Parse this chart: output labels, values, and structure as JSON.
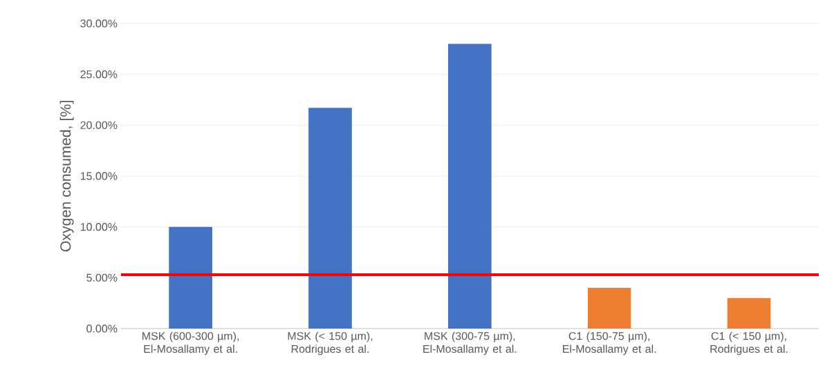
{
  "chart_data": {
    "type": "bar",
    "ylabel": "Oxygen consumed, [%]",
    "categories": [
      "MSK (600-300 µm), El-Mosallamy et al.",
      "MSK (< 150 µm), Rodrigues et al.",
      "MSK (300-75 µm), El-Mosallamy et al.",
      "C1 (150-75 µm), El-Mosallamy et al.",
      "C1 (< 150 µm), Rodrigues et al."
    ],
    "values": [
      10.0,
      21.7,
      28.0,
      4.0,
      3.0
    ],
    "colors": [
      "#4472c4",
      "#4472c4",
      "#4472c4",
      "#ed7d31",
      "#ed7d31"
    ],
    "ylim": [
      0,
      30
    ],
    "yticks": [
      {
        "value": 0,
        "label": "0.00%"
      },
      {
        "value": 5,
        "label": "5.00%"
      },
      {
        "value": 10,
        "label": "10.00%"
      },
      {
        "value": 15,
        "label": "15.00%"
      },
      {
        "value": 20,
        "label": "20.00%"
      },
      {
        "value": 25,
        "label": "25.00%"
      },
      {
        "value": 30,
        "label": "30.00%"
      }
    ],
    "ref_lines": [
      {
        "axis": "y",
        "value": 5.3,
        "color": "#ff0000"
      }
    ],
    "grid": "y"
  }
}
